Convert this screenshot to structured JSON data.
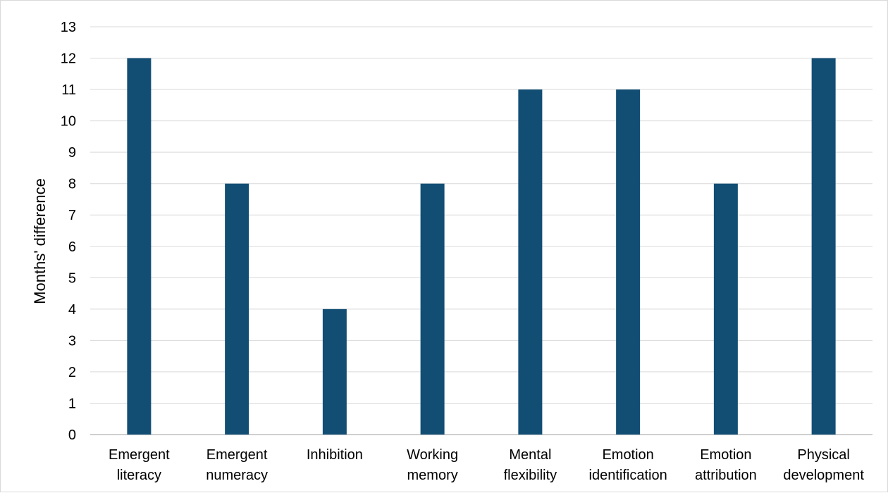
{
  "chart_data": {
    "type": "bar",
    "title": "",
    "xlabel": "",
    "ylabel": "Months' difference",
    "ylim": [
      0,
      13
    ],
    "ytick_step": 1,
    "grid": true,
    "legend": "none",
    "bar_color": "#124e74",
    "categories": [
      [
        "Emergent",
        "literacy"
      ],
      [
        "Emergent",
        "numeracy"
      ],
      [
        "Inhibition"
      ],
      [
        "Working",
        "memory"
      ],
      [
        "Mental",
        "flexibility"
      ],
      [
        "Emotion",
        "identification"
      ],
      [
        "Emotion",
        "attribution"
      ],
      [
        "Physical",
        "development"
      ]
    ],
    "values": [
      12,
      8,
      4,
      8,
      11,
      11,
      8,
      12
    ]
  }
}
